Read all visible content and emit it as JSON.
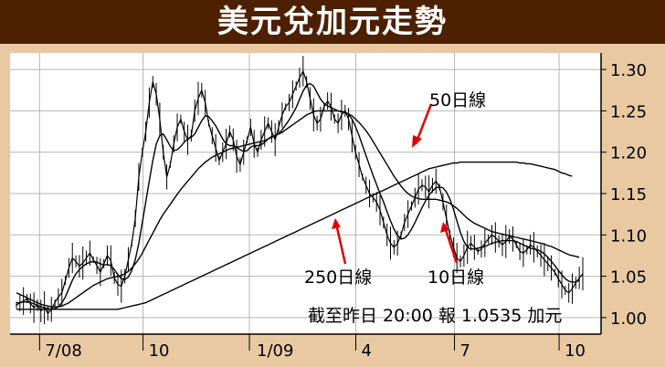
{
  "title": "美元兌加元走勢",
  "chart_data": {
    "type": "line",
    "ylim": [
      0.98,
      1.32
    ],
    "yticks": [
      1.0,
      1.05,
      1.1,
      1.15,
      1.2,
      1.25,
      1.3
    ],
    "xticks": [
      "7/08",
      "10",
      "1/09",
      "4",
      "7",
      "10"
    ],
    "grid": true,
    "series": [
      {
        "name": "price",
        "values": [
          1.015,
          1.018,
          1.02,
          1.023,
          1.017,
          1.012,
          1.015,
          1.008,
          1.012,
          1.005,
          1.01,
          1.018,
          1.025,
          1.03,
          1.045,
          1.06,
          1.072,
          1.068,
          1.062,
          1.066,
          1.072,
          1.078,
          1.07,
          1.063,
          1.055,
          1.065,
          1.075,
          1.069,
          1.048,
          1.04,
          1.038,
          1.05,
          1.07,
          1.09,
          1.12,
          1.17,
          1.2,
          1.225,
          1.26,
          1.285,
          1.27,
          1.24,
          1.2,
          1.17,
          1.185,
          1.21,
          1.23,
          1.24,
          1.225,
          1.215,
          1.22,
          1.25,
          1.265,
          1.275,
          1.26,
          1.235,
          1.22,
          1.205,
          1.19,
          1.2,
          1.21,
          1.225,
          1.215,
          1.195,
          1.185,
          1.2,
          1.215,
          1.23,
          1.21,
          1.2,
          1.215,
          1.225,
          1.235,
          1.225,
          1.215,
          1.23,
          1.245,
          1.255,
          1.26,
          1.27,
          1.28,
          1.29,
          1.298,
          1.285,
          1.265,
          1.245,
          1.235,
          1.24,
          1.255,
          1.262,
          1.255,
          1.24,
          1.235,
          1.245,
          1.25,
          1.24,
          1.22,
          1.2,
          1.185,
          1.17,
          1.16,
          1.15,
          1.145,
          1.14,
          1.13,
          1.115,
          1.1,
          1.09,
          1.085,
          1.09,
          1.1,
          1.115,
          1.125,
          1.135,
          1.145,
          1.155,
          1.16,
          1.158,
          1.152,
          1.16,
          1.165,
          1.158,
          1.14,
          1.12,
          1.1,
          1.085,
          1.072,
          1.068,
          1.075,
          1.085,
          1.09,
          1.085,
          1.08,
          1.083,
          1.09,
          1.095,
          1.1,
          1.097,
          1.092,
          1.088,
          1.092,
          1.098,
          1.095,
          1.088,
          1.08,
          1.078,
          1.082,
          1.088,
          1.085,
          1.08,
          1.075,
          1.07,
          1.065,
          1.06,
          1.055,
          1.047,
          1.04,
          1.033,
          1.03,
          1.035,
          1.042,
          1.048,
          1.053
        ]
      },
      {
        "name": "10日線",
        "values": [
          1.018,
          1.018,
          1.019,
          1.019,
          1.018,
          1.017,
          1.015,
          1.013,
          1.012,
          1.011,
          1.01,
          1.011,
          1.013,
          1.018,
          1.025,
          1.035,
          1.045,
          1.053,
          1.058,
          1.062,
          1.065,
          1.067,
          1.068,
          1.067,
          1.065,
          1.064,
          1.064,
          1.063,
          1.058,
          1.052,
          1.047,
          1.046,
          1.049,
          1.057,
          1.07,
          1.09,
          1.115,
          1.14,
          1.165,
          1.19,
          1.21,
          1.22,
          1.222,
          1.215,
          1.207,
          1.202,
          1.203,
          1.207,
          1.212,
          1.216,
          1.218,
          1.222,
          1.23,
          1.238,
          1.244,
          1.243,
          1.238,
          1.232,
          1.224,
          1.216,
          1.21,
          1.208,
          1.208,
          1.206,
          1.203,
          1.201,
          1.202,
          1.206,
          1.208,
          1.208,
          1.209,
          1.212,
          1.216,
          1.219,
          1.22,
          1.222,
          1.227,
          1.233,
          1.239,
          1.246,
          1.254,
          1.264,
          1.274,
          1.281,
          1.283,
          1.28,
          1.272,
          1.264,
          1.259,
          1.256,
          1.254,
          1.252,
          1.25,
          1.249,
          1.248,
          1.246,
          1.24,
          1.231,
          1.22,
          1.208,
          1.196,
          1.184,
          1.172,
          1.161,
          1.15,
          1.14,
          1.128,
          1.117,
          1.107,
          1.099,
          1.095,
          1.096,
          1.1,
          1.107,
          1.115,
          1.124,
          1.133,
          1.141,
          1.148,
          1.153,
          1.157,
          1.158,
          1.157,
          1.152,
          1.143,
          1.131,
          1.117,
          1.103,
          1.092,
          1.085,
          1.083,
          1.083,
          1.084,
          1.085,
          1.086,
          1.088,
          1.09,
          1.091,
          1.092,
          1.093,
          1.093,
          1.093,
          1.093,
          1.092,
          1.09,
          1.088,
          1.086,
          1.084,
          1.083,
          1.082,
          1.08,
          1.077,
          1.073,
          1.068,
          1.063,
          1.057,
          1.052,
          1.047,
          1.044,
          1.043,
          1.043,
          1.045
        ]
      },
      {
        "name": "50日線",
        "values": [
          1.03,
          1.028,
          1.026,
          1.024,
          1.022,
          1.02,
          1.018,
          1.016,
          1.015,
          1.014,
          1.013,
          1.013,
          1.013,
          1.014,
          1.016,
          1.018,
          1.021,
          1.024,
          1.027,
          1.03,
          1.033,
          1.036,
          1.039,
          1.041,
          1.043,
          1.045,
          1.047,
          1.048,
          1.049,
          1.05,
          1.051,
          1.053,
          1.056,
          1.06,
          1.065,
          1.071,
          1.078,
          1.086,
          1.094,
          1.102,
          1.11,
          1.118,
          1.125,
          1.131,
          1.137,
          1.143,
          1.149,
          1.155,
          1.16,
          1.165,
          1.17,
          1.175,
          1.18,
          1.184,
          1.188,
          1.191,
          1.194,
          1.196,
          1.198,
          1.2,
          1.202,
          1.204,
          1.205,
          1.206,
          1.207,
          1.208,
          1.209,
          1.21,
          1.211,
          1.212,
          1.213,
          1.214,
          1.216,
          1.218,
          1.22,
          1.222,
          1.224,
          1.227,
          1.23,
          1.233,
          1.236,
          1.239,
          1.242,
          1.245,
          1.247,
          1.249,
          1.25,
          1.25,
          1.25,
          1.25,
          1.25,
          1.25,
          1.25,
          1.249,
          1.248,
          1.246,
          1.244,
          1.24,
          1.236,
          1.231,
          1.226,
          1.22,
          1.213,
          1.206,
          1.199,
          1.192,
          1.185,
          1.178,
          1.171,
          1.165,
          1.159,
          1.154,
          1.15,
          1.147,
          1.145,
          1.144,
          1.143,
          1.143,
          1.143,
          1.143,
          1.143,
          1.142,
          1.141,
          1.14,
          1.138,
          1.135,
          1.132,
          1.128,
          1.124,
          1.12,
          1.117,
          1.114,
          1.112,
          1.11,
          1.108,
          1.106,
          1.104,
          1.103,
          1.102,
          1.101,
          1.1,
          1.099,
          1.098,
          1.097,
          1.096,
          1.095,
          1.094,
          1.093,
          1.092,
          1.091,
          1.09,
          1.089,
          1.087,
          1.086,
          1.084,
          1.082,
          1.08,
          1.078,
          1.076,
          1.075,
          1.074,
          1.073
        ]
      },
      {
        "name": "250日線",
        "values": [
          1.01,
          1.01,
          1.01,
          1.01,
          1.01,
          1.01,
          1.01,
          1.01,
          1.01,
          1.01,
          1.01,
          1.01,
          1.01,
          1.01,
          1.01,
          1.01,
          1.01,
          1.01,
          1.01,
          1.01,
          1.01,
          1.01,
          1.01,
          1.01,
          1.01,
          1.01,
          1.01,
          1.01,
          1.01,
          1.01,
          1.011,
          1.012,
          1.013,
          1.014,
          1.015,
          1.016,
          1.017,
          1.018,
          1.02,
          1.022,
          1.024,
          1.026,
          1.028,
          1.03,
          1.032,
          1.034,
          1.036,
          1.038,
          1.04,
          1.042,
          1.044,
          1.046,
          1.048,
          1.05,
          1.052,
          1.054,
          1.056,
          1.058,
          1.06,
          1.062,
          1.064,
          1.066,
          1.068,
          1.07,
          1.072,
          1.074,
          1.076,
          1.078,
          1.08,
          1.082,
          1.084,
          1.086,
          1.088,
          1.09,
          1.092,
          1.094,
          1.096,
          1.098,
          1.1,
          1.102,
          1.104,
          1.106,
          1.108,
          1.11,
          1.112,
          1.114,
          1.116,
          1.118,
          1.12,
          1.122,
          1.124,
          1.126,
          1.128,
          1.13,
          1.132,
          1.134,
          1.136,
          1.138,
          1.14,
          1.142,
          1.144,
          1.146,
          1.148,
          1.15,
          1.152,
          1.154,
          1.156,
          1.158,
          1.16,
          1.162,
          1.164,
          1.166,
          1.168,
          1.17,
          1.172,
          1.174,
          1.176,
          1.178,
          1.18,
          1.181,
          1.182,
          1.183,
          1.184,
          1.185,
          1.186,
          1.187,
          1.187,
          1.188,
          1.188,
          1.188,
          1.188,
          1.188,
          1.188,
          1.188,
          1.188,
          1.188,
          1.188,
          1.188,
          1.188,
          1.188,
          1.188,
          1.188,
          1.188,
          1.188,
          1.187,
          1.187,
          1.186,
          1.186,
          1.185,
          1.184,
          1.183,
          1.182,
          1.181,
          1.18,
          1.179,
          1.177,
          1.175,
          1.174,
          1.172,
          1.171
        ]
      }
    ],
    "annotations": {
      "ma50": "50日線",
      "ma250": "250日線",
      "ma10": "10日線",
      "note": "截至昨日 20:00 報 1.0535 加元"
    }
  }
}
